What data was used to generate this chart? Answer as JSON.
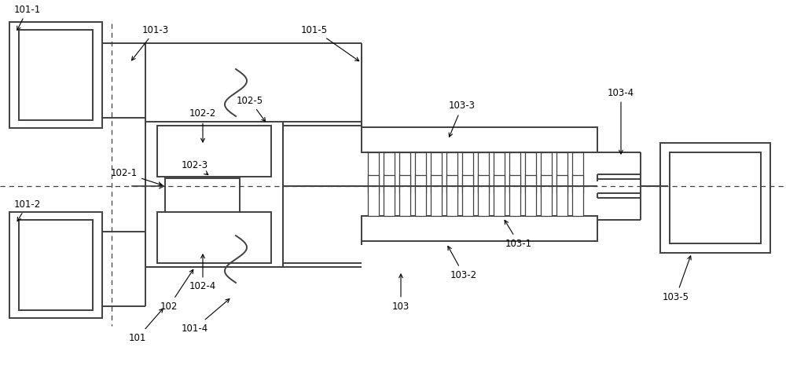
{
  "bg_color": "#ffffff",
  "lc": "#404040",
  "lw": 1.4,
  "tlw": 0.9,
  "fs": 8.5
}
